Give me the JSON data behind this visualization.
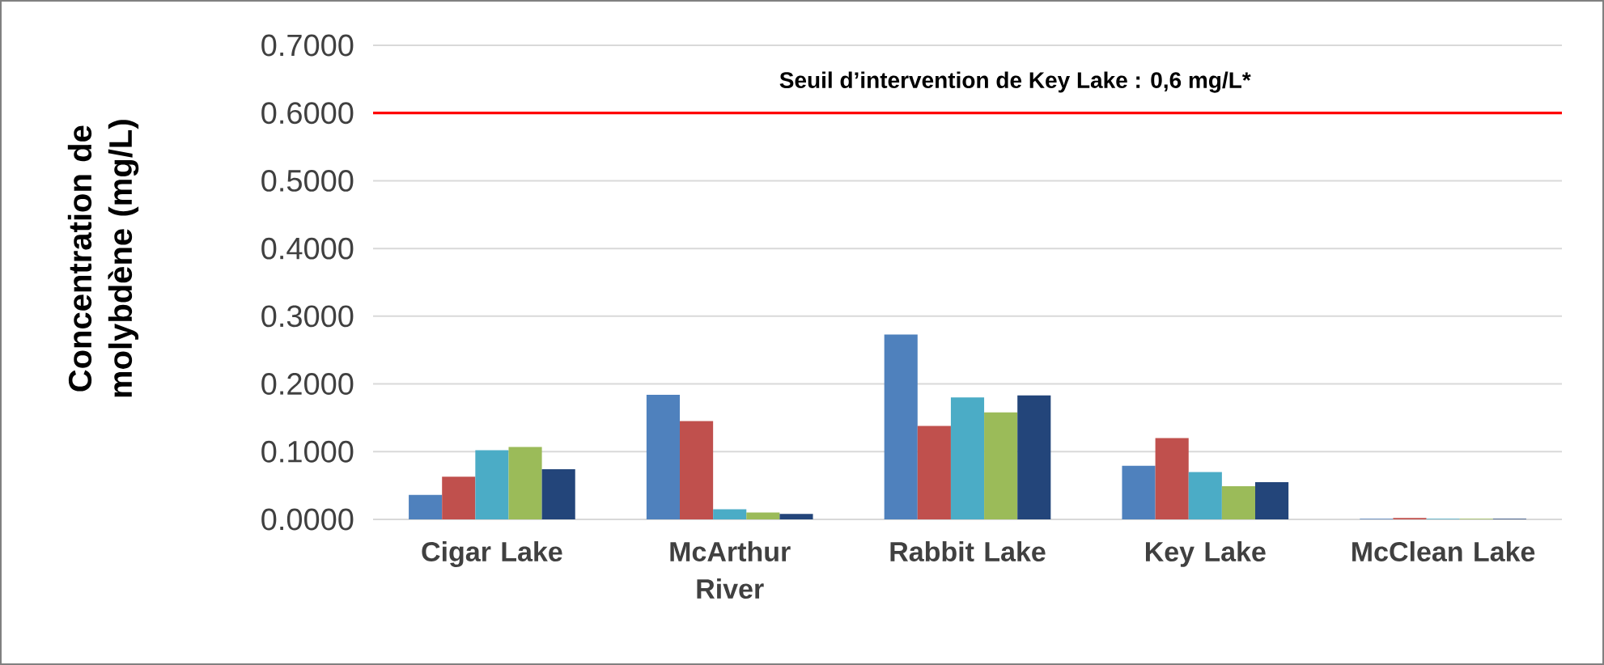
{
  "chart_data": {
    "type": "bar",
    "ylabel": "Concentration de molybdène (mg/L)",
    "categories": [
      "Cigar Lake",
      "McArthur River",
      "Rabbit Lake",
      "Key Lake",
      "McClean Lake"
    ],
    "series": [
      {
        "color": "#4f81bd",
        "values": [
          0.036,
          0.184,
          0.273,
          0.079,
          0.001
        ]
      },
      {
        "color": "#c0504d",
        "values": [
          0.063,
          0.145,
          0.138,
          0.12,
          0.002
        ]
      },
      {
        "color": "#4bacc6",
        "values": [
          0.102,
          0.015,
          0.18,
          0.07,
          0.001
        ]
      },
      {
        "color": "#9bbb59",
        "values": [
          0.107,
          0.01,
          0.158,
          0.049,
          0.001
        ]
      },
      {
        "color": "#23457a",
        "values": [
          0.074,
          0.008,
          0.183,
          0.055,
          0.001
        ]
      }
    ],
    "ylim": [
      0,
      0.7
    ],
    "yticks": [
      {
        "value": 0,
        "label": "0.0000"
      },
      {
        "value": 0.1,
        "label": "0.1000"
      },
      {
        "value": 0.2,
        "label": "0.2000"
      },
      {
        "value": 0.3,
        "label": "0.3000"
      },
      {
        "value": 0.4,
        "label": "0.4000"
      },
      {
        "value": 0.5,
        "label": "0.5000"
      },
      {
        "value": 0.6,
        "label": "0.6000"
      },
      {
        "value": 0.7,
        "label": "0.7000"
      }
    ],
    "grid": "y",
    "ref_lines": [
      {
        "axis": "y",
        "value": 0.6,
        "label": "Seuil d’intervention de Key Lake : 0,6 mg/L*",
        "color": "#ff0000"
      }
    ]
  }
}
